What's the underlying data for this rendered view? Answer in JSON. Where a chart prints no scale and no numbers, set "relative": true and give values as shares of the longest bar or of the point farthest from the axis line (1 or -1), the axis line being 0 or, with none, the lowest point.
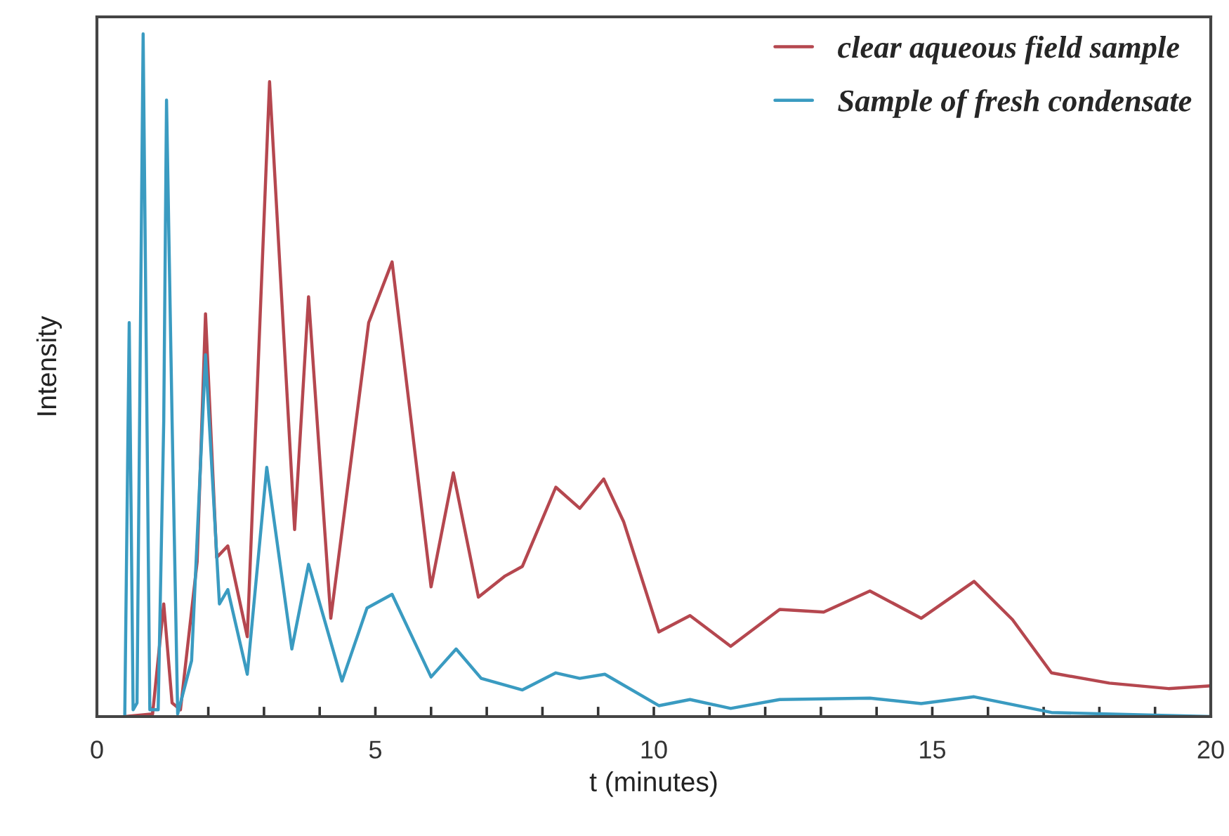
{
  "chart_data": {
    "type": "line",
    "relative": true,
    "xlabel": "t (minutes)",
    "ylabel": "Intensity",
    "xlim": [
      0,
      20
    ],
    "xticks": [
      0,
      {
        "value": 1,
        "label": null
      },
      {
        "value": 2,
        "label": null
      },
      {
        "value": 3,
        "label": null
      },
      {
        "value": 4,
        "label": null
      },
      5,
      {
        "value": 6,
        "label": null
      },
      {
        "value": 7,
        "label": null
      },
      {
        "value": 8,
        "label": null
      },
      {
        "value": 9,
        "label": null
      },
      10,
      {
        "value": 11,
        "label": null
      },
      {
        "value": 12,
        "label": null
      },
      {
        "value": 13,
        "label": null
      },
      {
        "value": 14,
        "label": null
      },
      15,
      {
        "value": 16,
        "label": null
      },
      {
        "value": 17,
        "label": null
      },
      {
        "value": 18,
        "label": null
      },
      {
        "value": 19,
        "label": null
      },
      20
    ],
    "legend": "top right",
    "grid": false,
    "marker": "none",
    "line_style": "solid",
    "series": [
      {
        "name": "clear aqueous field sample",
        "color": "#b5474f",
        "x": [
          0.5,
          1.0,
          1.2,
          1.35,
          1.5,
          1.8,
          1.95,
          2.15,
          2.35,
          2.7,
          3.1,
          3.55,
          3.8,
          4.2,
          4.88,
          5.3,
          6.0,
          6.4,
          6.85,
          7.33,
          7.64,
          8.24,
          8.67,
          9.1,
          9.46,
          10.09,
          10.65,
          11.38,
          12.26,
          13.05,
          13.88,
          14.8,
          15.75,
          16.44,
          17.14,
          18.18,
          19.24,
          20.0
        ],
        "values": [
          0,
          0.004,
          0.165,
          0.02,
          0.01,
          0.227,
          0.59,
          0.233,
          0.25,
          0.117,
          0.93,
          0.274,
          0.615,
          0.144,
          0.577,
          0.666,
          0.19,
          0.357,
          0.175,
          0.206,
          0.22,
          0.336,
          0.305,
          0.348,
          0.285,
          0.124,
          0.148,
          0.103,
          0.157,
          0.153,
          0.184,
          0.144,
          0.198,
          0.142,
          0.064,
          0.049,
          0.041,
          0.045
        ]
      },
      {
        "name": "Sample of fresh condensate",
        "color": "#3a9bc1",
        "x": [
          0.5,
          0.58,
          0.65,
          0.72,
          0.83,
          0.95,
          1.1,
          1.2,
          1.25,
          1.35,
          1.45,
          1.7,
          1.95,
          2.2,
          2.35,
          2.7,
          3.05,
          3.5,
          3.8,
          4.4,
          4.85,
          5.3,
          6.0,
          6.45,
          6.9,
          7.64,
          8.24,
          8.67,
          9.12,
          10.09,
          10.65,
          11.38,
          12.26,
          13.88,
          14.8,
          15.75,
          17.14,
          20.0
        ],
        "values": [
          0,
          0.577,
          0.01,
          0.02,
          1.0,
          0.01,
          0.01,
          0.433,
          0.903,
          0.433,
          0.004,
          0.082,
          0.53,
          0.165,
          0.186,
          0.062,
          0.365,
          0.099,
          0.223,
          0.052,
          0.159,
          0.179,
          0.058,
          0.099,
          0.056,
          0.039,
          0.064,
          0.056,
          0.062,
          0.016,
          0.025,
          0.012,
          0.025,
          0.027,
          0.019,
          0.029,
          0.006,
          0.0
        ]
      }
    ]
  }
}
